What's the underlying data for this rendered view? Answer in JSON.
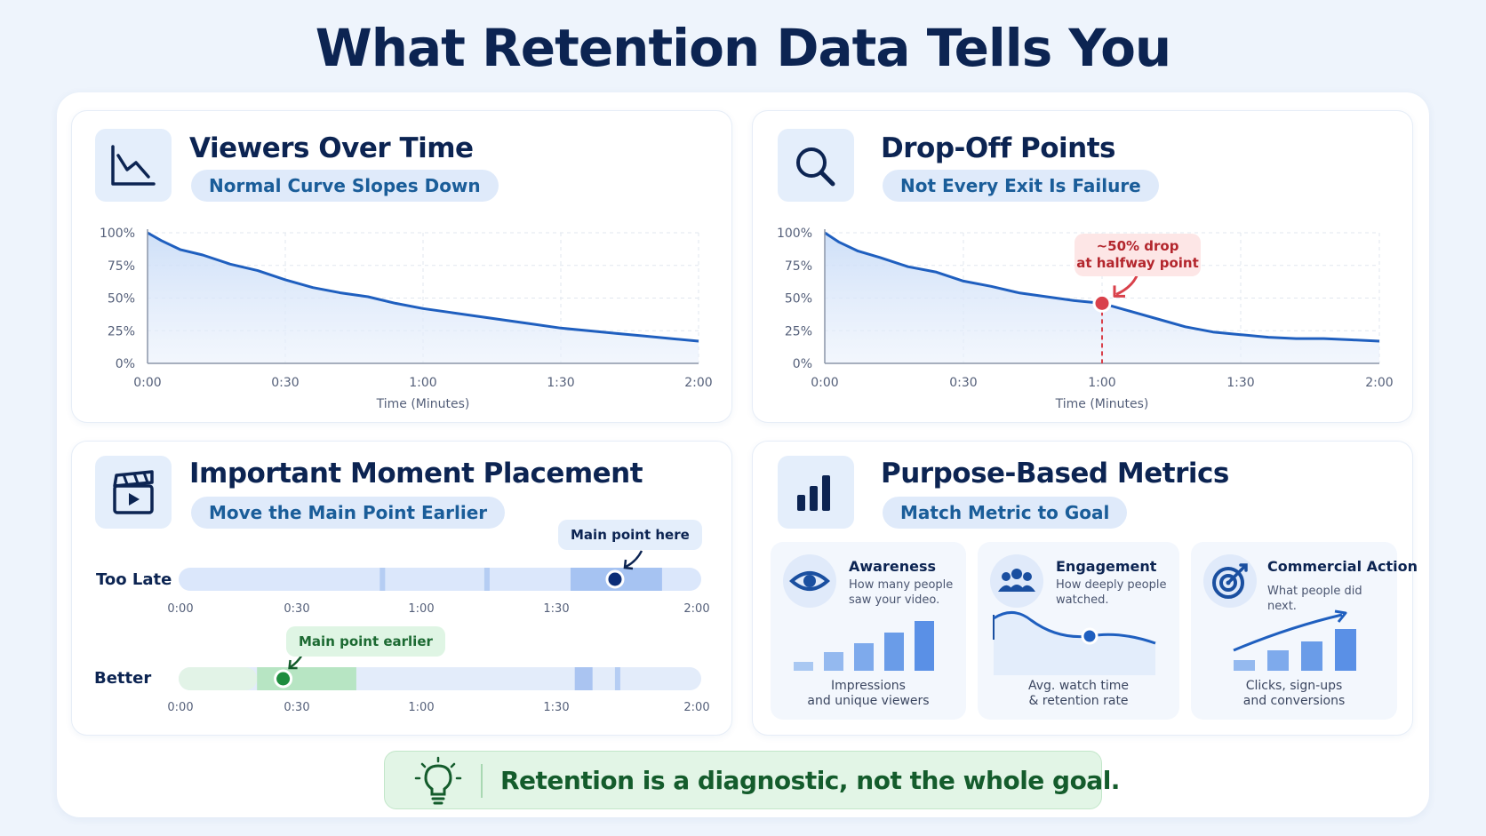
{
  "page": {
    "title": "What Retention Data Tells You"
  },
  "cards": {
    "viewers": {
      "title": "Viewers Over Time",
      "subtitle": "Normal Curve Slopes Down",
      "icon": "line-chart-icon"
    },
    "dropoff": {
      "title": "Drop-Off Points",
      "subtitle": "Not Every Exit Is Failure",
      "icon": "magnifier-icon",
      "callout_line1": "~50% drop",
      "callout_line2": "at halfway point",
      "marker_color": "#d9414b"
    },
    "placement": {
      "title": "Important Moment Placement",
      "subtitle": "Move the Main Point Earlier",
      "icon": "clapperboard-icon",
      "rows": [
        {
          "label": "Too Late",
          "callout": "Main point here",
          "ticks": [
            "0:00",
            "0:30",
            "1:00",
            "1:30",
            "2:00"
          ],
          "marker_time": 1.67,
          "highlight_start": 1.5,
          "highlight_end": 1.85,
          "accent": "#1f5fbf"
        },
        {
          "label": "Better",
          "callout": "Main point earlier",
          "ticks": [
            "0:00",
            "0:30",
            "1:00",
            "1:30",
            "2:00"
          ],
          "marker_time": 0.4,
          "highlight_start": 0.3,
          "highlight_end": 0.68,
          "accent": "#1e8c3e"
        }
      ]
    },
    "metrics": {
      "title": "Purpose-Based Metrics",
      "subtitle": "Match Metric to Goal",
      "icon": "bar-chart-icon",
      "items": [
        {
          "title": "Awareness",
          "desc": "How many people saw your video.",
          "foot1": "Impressions",
          "foot2": "and unique viewers",
          "icon": "eye-icon"
        },
        {
          "title": "Engagement",
          "desc": "How deeply people watched.",
          "foot1": "Avg. watch time",
          "foot2": "& retention rate",
          "icon": "people-icon"
        },
        {
          "title": "Commercial Action",
          "desc": "What people did next.",
          "foot1": "Clicks, sign-ups",
          "foot2": "and conversions",
          "icon": "target-icon"
        }
      ]
    }
  },
  "banner": {
    "text": "Retention is a diagnostic, not the whole goal.",
    "icon": "lightbulb-icon"
  },
  "colors": {
    "accent": "#1f5fbf",
    "title": "#0c2452",
    "danger": "#d9414b",
    "success": "#1e8c3e"
  },
  "chart_data": [
    {
      "type": "area",
      "xlabel": "Time (Minutes)",
      "x_ticks": [
        "0:00",
        "0:30",
        "1:00",
        "1:30",
        "2:00"
      ],
      "y_ticks": [
        "0%",
        "25%",
        "50%",
        "75%",
        "100%"
      ],
      "xlim": [
        0,
        2
      ],
      "ylim": [
        0,
        100
      ],
      "grid": true,
      "x": [
        0,
        0.05,
        0.12,
        0.2,
        0.3,
        0.4,
        0.5,
        0.6,
        0.7,
        0.8,
        0.9,
        1.0,
        1.1,
        1.2,
        1.3,
        1.4,
        1.5,
        1.6,
        1.7,
        1.8,
        1.9,
        2.0
      ],
      "y": [
        100,
        94,
        87,
        83,
        76,
        71,
        64,
        58,
        54,
        51,
        46,
        42,
        39,
        36,
        33,
        30,
        27,
        25,
        23,
        21,
        19,
        17
      ]
    },
    {
      "type": "area",
      "xlabel": "Time (Minutes)",
      "x_ticks": [
        "0:00",
        "0:30",
        "1:00",
        "1:30",
        "2:00"
      ],
      "y_ticks": [
        "0%",
        "25%",
        "50%",
        "75%",
        "100%"
      ],
      "xlim": [
        0,
        2
      ],
      "ylim": [
        0,
        100
      ],
      "grid": true,
      "x": [
        0,
        0.05,
        0.12,
        0.2,
        0.3,
        0.4,
        0.5,
        0.6,
        0.7,
        0.8,
        0.9,
        1.0,
        1.1,
        1.2,
        1.3,
        1.4,
        1.5,
        1.6,
        1.7,
        1.8,
        1.9,
        2.0
      ],
      "y": [
        100,
        93,
        86,
        81,
        74,
        70,
        63,
        59,
        54,
        51,
        48,
        46,
        40,
        34,
        28,
        24,
        22,
        20,
        19,
        19,
        18,
        17
      ],
      "annotation": {
        "x": 1.0,
        "y": 46,
        "text": "~50% drop at halfway point"
      }
    }
  ]
}
